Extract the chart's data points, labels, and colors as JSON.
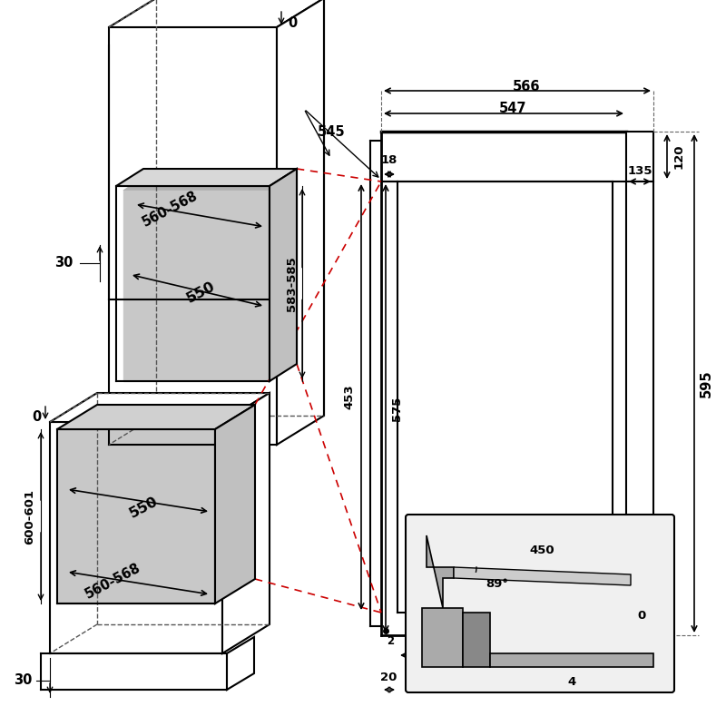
{
  "bg_color": "#ffffff",
  "line_color": "#000000",
  "red_dash_color": "#cc0000",
  "gray_fill": "#c8c8c8",
  "light_gray_fill": "#d8d8d8",
  "dims": {
    "566": "566",
    "547": "547",
    "545": "545",
    "135": "135",
    "120": "120",
    "595_h": "595",
    "595_w": "595",
    "453": "453",
    "575": "575",
    "18": "18",
    "2": "2",
    "20": "20",
    "560_568_top": "560-568",
    "583_585": "583-585",
    "550_top": "550",
    "30_top": "30",
    "0_top": "0",
    "560_568_bot": "560-568",
    "550_bot": "550",
    "600_601": "600-601",
    "30_bot": "30",
    "0_bot": "0",
    "450": "450",
    "89": "89°",
    "0_door": "0",
    "4": "4"
  }
}
